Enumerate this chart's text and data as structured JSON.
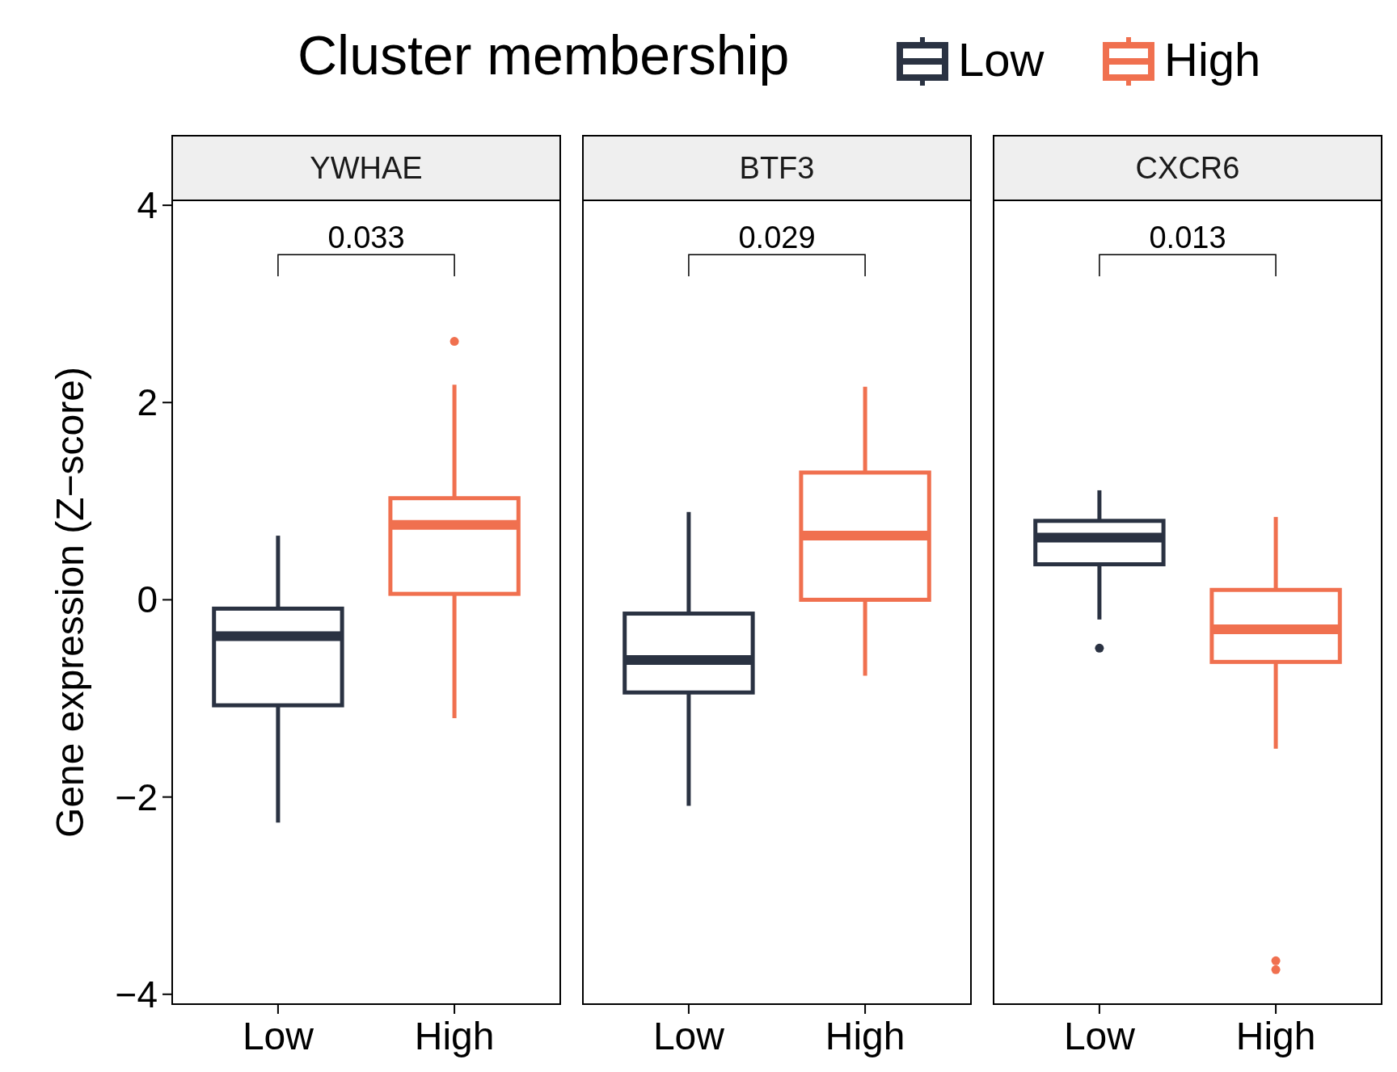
{
  "chart_data": [
    {
      "type": "box",
      "title": "YWHAE",
      "ylabel": "Gene expression (Z−score)",
      "legend_title": "Cluster membership",
      "legend": "top",
      "categories": [
        "Low",
        "High"
      ],
      "ylim": [
        -4.1,
        4.05
      ],
      "yticks": [
        {
          "value": -4,
          "label": "−4"
        },
        {
          "value": -2,
          "label": "−2"
        },
        0,
        2,
        4
      ],
      "annotations": [
        "0.033"
      ],
      "series": [
        {
          "name": "Low",
          "color": "#2a3242",
          "boxes": [
            {
              "low": -2.26,
              "q1": -1.07,
              "median": -0.37,
              "q3": -0.09,
              "high": 0.65
            },
            null
          ]
        },
        {
          "name": "High",
          "color": "#f0704f",
          "boxes": [
            null,
            {
              "low": -1.2,
              "q1": 0.06,
              "median": 0.76,
              "q3": 1.03,
              "high": 2.18,
              "outliers": [
                2.62
              ]
            }
          ]
        }
      ]
    },
    {
      "type": "box",
      "title": "BTF3",
      "categories": [
        "Low",
        "High"
      ],
      "ylim": [
        -4.1,
        4.05
      ],
      "tick_labels": "x",
      "annotations": [
        "0.029"
      ],
      "series": [
        {
          "color": "#2a3242",
          "boxes": [
            {
              "low": -2.09,
              "q1": -0.94,
              "median": -0.61,
              "q3": -0.14,
              "high": 0.89
            },
            null
          ]
        },
        {
          "color": "#f0704f",
          "boxes": [
            null,
            {
              "low": -0.77,
              "q1": 0,
              "median": 0.65,
              "q3": 1.29,
              "high": 2.16
            }
          ]
        }
      ]
    },
    {
      "type": "box",
      "title": "CXCR6",
      "categories": [
        "Low",
        "High"
      ],
      "ylim": [
        -4.1,
        4.05
      ],
      "tick_labels": "x",
      "annotations": [
        "0.013"
      ],
      "series": [
        {
          "color": "#2a3242",
          "boxes": [
            {
              "low": -0.2,
              "q1": 0.36,
              "median": 0.63,
              "q3": 0.8,
              "high": 1.11,
              "outliers": [
                -0.49
              ]
            },
            null
          ]
        },
        {
          "color": "#f0704f",
          "boxes": [
            null,
            {
              "low": -1.51,
              "q1": -0.63,
              "median": -0.3,
              "q3": 0.1,
              "high": 0.84,
              "outliers": [
                -3.66,
                -3.75
              ]
            }
          ]
        }
      ]
    }
  ]
}
